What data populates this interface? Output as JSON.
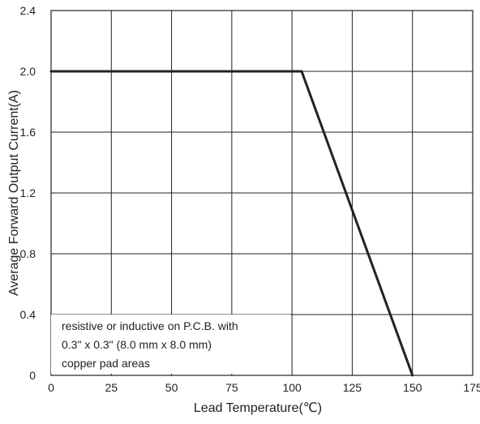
{
  "chart_data": {
    "type": "line",
    "title": "",
    "xlabel": "Lead Temperature(℃)",
    "ylabel": "Average Forward Output Current(A)",
    "xlim": [
      0,
      175
    ],
    "ylim": [
      0,
      2.4
    ],
    "x_ticks": [
      "0",
      "25",
      "50",
      "75",
      "100",
      "125",
      "150",
      "175"
    ],
    "y_ticks": [
      "0",
      "0.4",
      "0.8",
      "1.2",
      "1.6",
      "2.0",
      "2.4"
    ],
    "grid": true,
    "series": [
      {
        "x": [
          0,
          104,
          150
        ],
        "y": [
          2.0,
          2.0,
          0
        ],
        "color": "#222222"
      }
    ],
    "annotation": [
      "resistive or inductive on P.C.B. with",
      "0.3\" x 0.3\" (8.0 mm x 8.0 mm)",
      "copper pad areas"
    ]
  }
}
